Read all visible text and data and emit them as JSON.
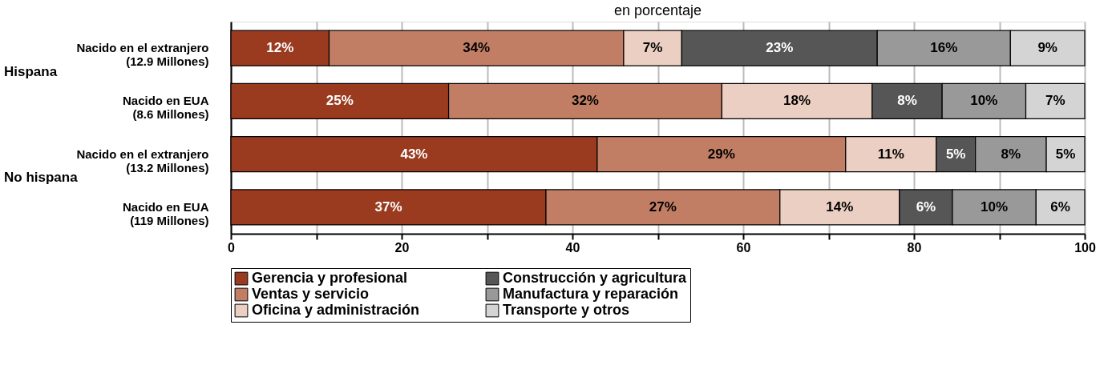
{
  "chart_data": {
    "type": "bar",
    "orientation": "horizontal",
    "stacked": true,
    "title": "en porcentaje",
    "categories": [
      "Nacido en el extranjero\n(12.9 Millones)",
      "Nacido en EUA\n(8.6 Millones)",
      "Nacido en el extranjero\n(13.2 Millones)",
      "Nacido en EUA\n(119 Millones)"
    ],
    "series": [
      {
        "name": "Gerencia y profesional",
        "color": "#9a3a1f",
        "values": [
          11.5,
          25.5,
          42.9,
          36.9
        ],
        "value_labels": [
          "12%",
          "25%",
          "43%",
          "37%"
        ]
      },
      {
        "name": "Ventas y servicio",
        "color": "#c27e64",
        "values": [
          34.5,
          32,
          29.1,
          27.4
        ],
        "value_labels": [
          "34%",
          "32%",
          "29%",
          "27%"
        ]
      },
      {
        "name": "Oficina y administración",
        "color": "#ebcfc2",
        "values": [
          6.8,
          17.6,
          10.6,
          14
        ],
        "value_labels": [
          "7%",
          "18%",
          "11%",
          "14%"
        ]
      },
      {
        "name": "Construcción y agricultura",
        "color": "#565656",
        "values": [
          22.9,
          8.2,
          4.6,
          6.2
        ],
        "value_labels": [
          "23%",
          "8%",
          "5%",
          "6%"
        ]
      },
      {
        "name": "Manufactura y reparación",
        "color": "#999999",
        "values": [
          15.6,
          9.8,
          8.3,
          9.8
        ],
        "value_labels": [
          "16%",
          "10%",
          "8%",
          "10%"
        ]
      },
      {
        "name": "Transporte y otros",
        "color": "#d4d4d4",
        "values": [
          8.7,
          6.9,
          4.5,
          5.7
        ],
        "value_labels": [
          "9%",
          "7%",
          "5%",
          "6%"
        ]
      }
    ],
    "xlim": [
      0,
      100
    ],
    "xticks": [
      0,
      {
        "value": 10,
        "label": null
      },
      20,
      {
        "value": 30,
        "label": null
      },
      40,
      {
        "value": 50,
        "label": null
      },
      60,
      {
        "value": 70,
        "label": null
      },
      80,
      {
        "value": 90,
        "label": null
      },
      100
    ],
    "grid": "x",
    "legend": "bottom",
    "annotations": [
      "Hispana",
      "No hispana"
    ]
  }
}
